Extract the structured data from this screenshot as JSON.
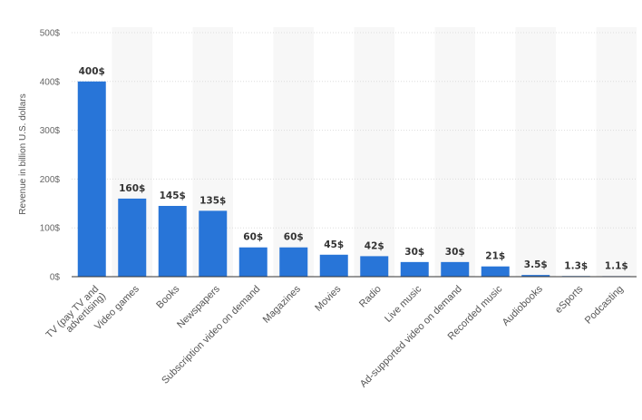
{
  "chart_data": {
    "type": "bar",
    "ylabel": "Revenue in billion U.S. dollars",
    "ylim": [
      0,
      500
    ],
    "yticks": [
      {
        "value": 0,
        "label": "0$"
      },
      {
        "value": 100,
        "label": "100$"
      },
      {
        "value": 200,
        "label": "200$"
      },
      {
        "value": 300,
        "label": "300$"
      },
      {
        "value": 400,
        "label": "400$"
      },
      {
        "value": 500,
        "label": "500$"
      }
    ],
    "grid": true,
    "bar_color": "#2875d8",
    "categories": [
      [
        "TV (pay TV and",
        "advertising)"
      ],
      [
        "Video games"
      ],
      [
        "Books"
      ],
      [
        "Newspapers"
      ],
      [
        "Subscription video on demand"
      ],
      [
        "Magazines"
      ],
      [
        "Movies"
      ],
      [
        "Radio"
      ],
      [
        "Live music"
      ],
      [
        "Ad-supported video on demand"
      ],
      [
        "Recorded music"
      ],
      [
        "Audiobooks"
      ],
      [
        "eSports"
      ],
      [
        "Podcasting"
      ]
    ],
    "values": [
      400,
      160,
      145,
      135,
      60,
      60,
      45,
      42,
      30,
      30,
      21,
      3.5,
      1.3,
      1.1
    ],
    "data_labels": [
      "400$",
      "160$",
      "145$",
      "135$",
      "60$",
      "60$",
      "45$",
      "42$",
      "30$",
      "30$",
      "21$",
      "3.5$",
      "1.3$",
      "1.1$"
    ]
  }
}
